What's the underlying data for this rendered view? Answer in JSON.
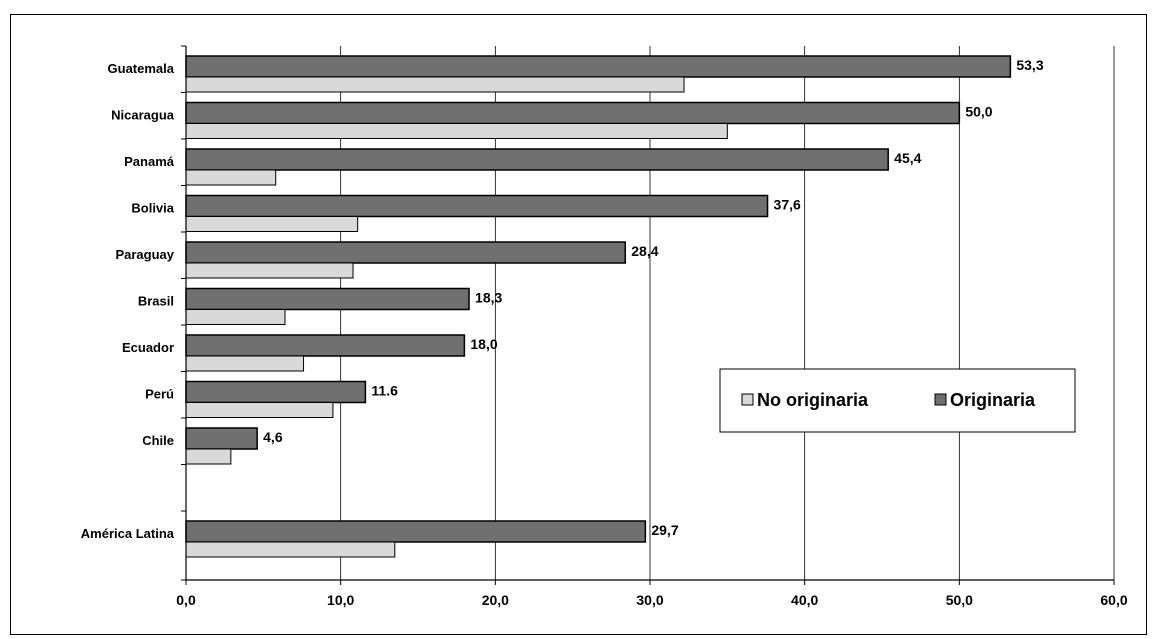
{
  "chart_data": {
    "type": "bar",
    "orientation": "horizontal",
    "title": "",
    "xlabel": "",
    "ylabel": "",
    "categories": [
      "Guatemala",
      "Nicaragua",
      "Panamá",
      "Bolivia",
      "Paraguay",
      "Brasil",
      "Ecuador",
      "Perú",
      "Chile",
      "América Latina"
    ],
    "series": [
      {
        "name": "Originaria",
        "color": "#707070",
        "values": [
          53.3,
          50.0,
          45.4,
          37.6,
          28.4,
          18.3,
          18.0,
          11.6,
          4.6,
          29.7
        ],
        "labels": [
          "53,3",
          "50,0",
          "45,4",
          "37,6",
          "28,4",
          "18,3",
          "18,0",
          "11.6",
          "4,6",
          "29,7"
        ]
      },
      {
        "name": "No originaria",
        "color": "#d9d9d9",
        "values": [
          32.2,
          35.0,
          5.8,
          11.1,
          10.8,
          6.4,
          7.6,
          9.5,
          2.9,
          13.5
        ]
      }
    ],
    "xlim": [
      0,
      60
    ],
    "xticks": [
      0,
      10,
      20,
      30,
      40,
      50,
      60
    ],
    "xtick_labels": [
      "0,0",
      "10,0",
      "20,0",
      "30,0",
      "40,0",
      "50,0",
      "60,0"
    ],
    "grid": "vertical",
    "legend": {
      "position": "lower-right",
      "entries": [
        "No originaria",
        "Originaria"
      ]
    }
  }
}
